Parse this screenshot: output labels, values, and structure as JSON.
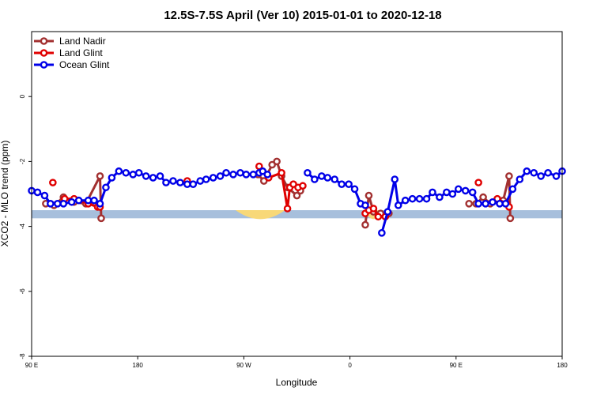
{
  "chart_data": {
    "type": "line",
    "title": "12.5S-7.5S April (Ver 10)   2015-01-01 to 2020-12-18",
    "xlabel": "Longitude",
    "ylabel": "XCO2 - MLO trend (ppm)",
    "xlim": [
      0,
      450
    ],
    "ylim": [
      -8,
      2
    ],
    "x_ticks": [
      {
        "x": 0,
        "label": "90 E"
      },
      {
        "x": 90,
        "label": "180"
      },
      {
        "x": 180,
        "label": "90 W"
      },
      {
        "x": 270,
        "label": "0"
      },
      {
        "x": 360,
        "label": "90 E"
      },
      {
        "x": 450,
        "label": "180"
      }
    ],
    "y_ticks": [
      {
        "y": 0,
        "label": "0"
      },
      {
        "y": -2,
        "label": "-2"
      },
      {
        "y": -4,
        "label": "-4"
      },
      {
        "y": -6,
        "label": "-6"
      },
      {
        "y": -8,
        "label": "-8"
      }
    ],
    "legend_position": "top-left",
    "band": {
      "y_min": -3.75,
      "y_max": -3.5,
      "color": "#a7bfdc"
    },
    "land_masks": [
      {
        "x_center": 194,
        "half_width": 21,
        "color": "#f8d878"
      },
      {
        "x_center": 290,
        "half_width": 8,
        "color": "#f8d878"
      }
    ],
    "series": [
      {
        "name": "Land Nadir",
        "color": "#a23030",
        "segments": [
          [
            [
              12,
              -3.3
            ],
            [
              19,
              -3.35
            ],
            [
              27,
              -3.1
            ],
            [
              36,
              -3.25
            ],
            [
              46,
              -3.3
            ],
            [
              58,
              -2.45
            ],
            [
              59,
              -3.75
            ]
          ],
          [
            [
              192,
              -2.4
            ],
            [
              197,
              -2.6
            ],
            [
              204,
              -2.1
            ],
            [
              208,
              -2.0
            ],
            [
              212,
              -2.45
            ],
            [
              217,
              -2.8
            ],
            [
              225,
              -3.05
            ],
            [
              228,
              -2.9
            ]
          ],
          [
            [
              283,
              -3.95
            ],
            [
              286,
              -3.05
            ],
            [
              290,
              -3.55
            ],
            [
              296,
              -3.6
            ],
            [
              303,
              -3.6
            ]
          ],
          [
            [
              371,
              -3.3
            ],
            [
              377,
              -3.3
            ],
            [
              383,
              -3.1
            ],
            [
              389,
              -3.3
            ],
            [
              395,
              -3.2
            ],
            [
              400,
              -3.2
            ],
            [
              405,
              -2.45
            ],
            [
              406,
              -3.75
            ]
          ]
        ]
      },
      {
        "name": "Land Glint",
        "color": "#e00000",
        "segments": [
          [
            [
              18,
              -2.65
            ]
          ],
          [
            [
              28,
              -3.15
            ],
            [
              36,
              -3.15
            ],
            [
              48,
              -3.3
            ],
            [
              56,
              -3.4
            ],
            [
              58,
              -3.4
            ]
          ],
          [
            [
              132,
              -2.6
            ]
          ],
          [
            [
              193,
              -2.15
            ],
            [
              201,
              -2.5
            ],
            [
              212,
              -2.35
            ],
            [
              217,
              -3.45
            ],
            [
              219,
              -2.8
            ],
            [
              222,
              -2.7
            ],
            [
              226,
              -2.8
            ],
            [
              230,
              -2.75
            ]
          ],
          [
            [
              283,
              -3.6
            ],
            [
              286,
              -3.5
            ],
            [
              290,
              -3.45
            ],
            [
              294,
              -3.7
            ],
            [
              300,
              -3.7
            ]
          ],
          [
            [
              379,
              -2.65
            ]
          ],
          [
            [
              395,
              -3.15
            ],
            [
              403,
              -3.3
            ],
            [
              405,
              -3.4
            ]
          ]
        ]
      },
      {
        "name": "Ocean Glint",
        "color": "#0000e8",
        "segments": [
          [
            [
              0,
              -2.9
            ],
            [
              5,
              -2.95
            ],
            [
              11,
              -3.05
            ],
            [
              16,
              -3.3
            ],
            [
              22,
              -3.3
            ],
            [
              27,
              -3.3
            ],
            [
              34,
              -3.25
            ],
            [
              40,
              -3.2
            ],
            [
              48,
              -3.2
            ],
            [
              53,
              -3.2
            ],
            [
              58,
              -3.3
            ],
            [
              63,
              -2.8
            ],
            [
              68,
              -2.5
            ],
            [
              74,
              -2.3
            ],
            [
              80,
              -2.35
            ],
            [
              86,
              -2.4
            ],
            [
              91,
              -2.35
            ],
            [
              97,
              -2.45
            ],
            [
              103,
              -2.5
            ],
            [
              109,
              -2.45
            ],
            [
              114,
              -2.65
            ],
            [
              120,
              -2.6
            ],
            [
              126,
              -2.65
            ],
            [
              132,
              -2.7
            ],
            [
              137,
              -2.7
            ],
            [
              143,
              -2.6
            ],
            [
              148,
              -2.55
            ],
            [
              154,
              -2.5
            ],
            [
              160,
              -2.45
            ],
            [
              165,
              -2.35
            ],
            [
              171,
              -2.4
            ],
            [
              177,
              -2.35
            ],
            [
              182,
              -2.4
            ],
            [
              188,
              -2.4
            ],
            [
              193,
              -2.35
            ],
            [
              196,
              -2.3
            ],
            [
              200,
              -2.4
            ]
          ],
          [
            [
              234,
              -2.35
            ],
            [
              240,
              -2.55
            ],
            [
              246,
              -2.45
            ],
            [
              251,
              -2.5
            ],
            [
              257,
              -2.55
            ],
            [
              263,
              -2.7
            ],
            [
              269,
              -2.7
            ],
            [
              274,
              -2.85
            ],
            [
              279,
              -3.3
            ],
            [
              283,
              -3.35
            ]
          ],
          [
            [
              297,
              -4.2
            ],
            [
              302,
              -3.55
            ],
            [
              308,
              -2.55
            ],
            [
              311,
              -3.35
            ],
            [
              317,
              -3.2
            ],
            [
              323,
              -3.15
            ],
            [
              329,
              -3.15
            ],
            [
              335,
              -3.15
            ],
            [
              340,
              -2.95
            ],
            [
              346,
              -3.1
            ],
            [
              352,
              -2.95
            ],
            [
              357,
              -3.0
            ],
            [
              362,
              -2.85
            ],
            [
              368,
              -2.9
            ],
            [
              374,
              -2.95
            ],
            [
              379,
              -3.3
            ],
            [
              385,
              -3.3
            ],
            [
              391,
              -3.25
            ],
            [
              397,
              -3.3
            ],
            [
              402,
              -3.3
            ],
            [
              408,
              -2.85
            ],
            [
              414,
              -2.55
            ],
            [
              420,
              -2.3
            ],
            [
              426,
              -2.35
            ],
            [
              432,
              -2.45
            ],
            [
              438,
              -2.35
            ],
            [
              445,
              -2.45
            ],
            [
              450,
              -2.3
            ]
          ]
        ]
      }
    ]
  }
}
